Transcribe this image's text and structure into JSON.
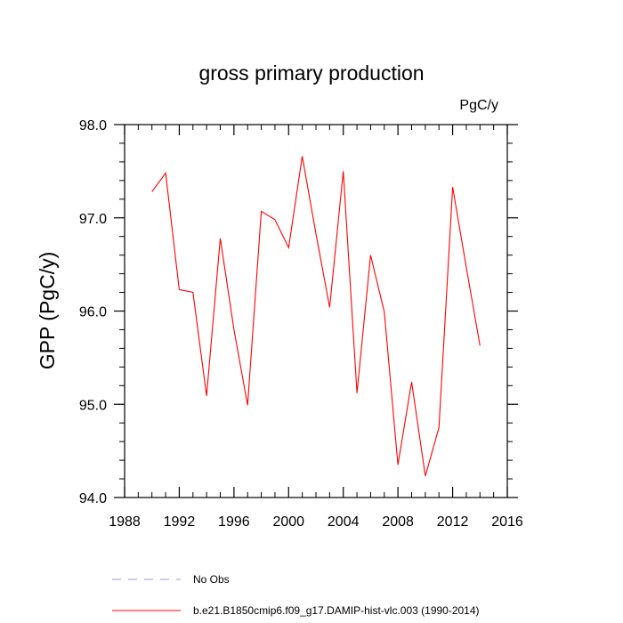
{
  "chart_data": {
    "type": "line",
    "title": "gross primary production",
    "units_label": "PgC/y",
    "xlabel": "",
    "ylabel": "GPP  (PgC/y)",
    "xlim": [
      1988,
      2016
    ],
    "ylim": [
      94.0,
      98.0
    ],
    "x_ticks": [
      1988,
      1992,
      1996,
      2000,
      2004,
      2008,
      2012,
      2016
    ],
    "x_tick_labels": [
      "1988",
      "1992",
      "1996",
      "2000",
      "2004",
      "2008",
      "2012",
      "2016"
    ],
    "y_ticks": [
      94.0,
      95.0,
      96.0,
      97.0,
      98.0
    ],
    "y_tick_labels": [
      "94.0",
      "95.0",
      "96.0",
      "97.0",
      "98.0"
    ],
    "grid": false,
    "legend_position": "bottom",
    "series": [
      {
        "name": "b.e21.B1850cmip6.f09_g17.DAMIP-hist-vlc.003 (1990-2014)",
        "color": "#ff0000",
        "style": "solid",
        "x": [
          1990,
          1991,
          1992,
          1993,
          1994,
          1995,
          1996,
          1997,
          1998,
          1999,
          2000,
          2001,
          2002,
          2003,
          2004,
          2005,
          2006,
          2007,
          2008,
          2009,
          2010,
          2011,
          2012,
          2013,
          2014
        ],
        "y": [
          97.28,
          97.48,
          96.23,
          96.2,
          95.09,
          96.78,
          95.8,
          94.99,
          97.07,
          96.98,
          96.68,
          97.66,
          96.83,
          96.04,
          97.5,
          95.12,
          96.6,
          95.99,
          94.35,
          95.24,
          94.23,
          94.75,
          97.33,
          96.47,
          95.63
        ]
      }
    ],
    "legend": [
      {
        "label": "No Obs",
        "color": "#9999ff",
        "style": "dashed"
      },
      {
        "label": "b.e21.B1850cmip6.f09_g17.DAMIP-hist-vlc.003 (1990-2014)",
        "color": "#ff0000",
        "style": "solid"
      }
    ]
  }
}
